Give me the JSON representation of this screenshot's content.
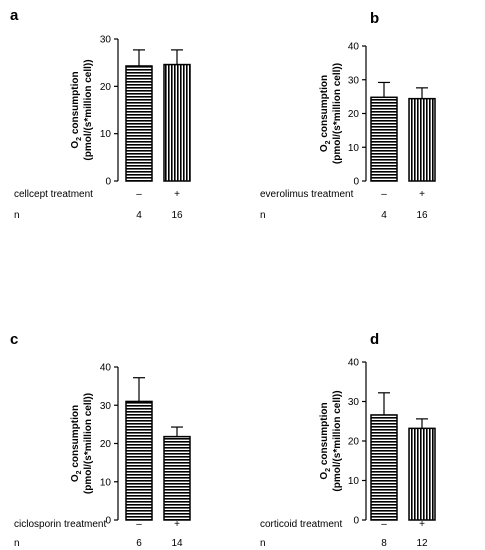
{
  "chart_data": [
    {
      "type": "bar",
      "panel": "a",
      "ylabel_line1_pre": "O",
      "ylabel_line1_sub": "2",
      "ylabel_line1_post": " consumption",
      "ylabel_line2": "(pmol/(s*million cell))",
      "ylim": [
        0,
        30
      ],
      "yticks": [
        "0",
        "10",
        "20",
        "30"
      ],
      "categories": [
        "–",
        "+"
      ],
      "values": [
        24.3,
        24.6
      ],
      "errors": [
        3.4,
        3.1
      ],
      "condition_label": "cellcept treatment",
      "n_label": "n",
      "n_values": [
        "4",
        "16"
      ],
      "bar_patterns": [
        "horizontal",
        "vertical"
      ]
    },
    {
      "type": "bar",
      "panel": "b",
      "ylabel_line1_pre": "O",
      "ylabel_line1_sub": "2",
      "ylabel_line1_post": " consumption",
      "ylabel_line2": "(pmol/(s*million cell))",
      "ylim": [
        0,
        40
      ],
      "yticks": [
        "0",
        "10",
        "20",
        "30",
        "40"
      ],
      "categories": [
        "–",
        "+"
      ],
      "values": [
        24.8,
        24.4
      ],
      "errors": [
        4.4,
        3.2
      ],
      "condition_label": "everolimus treatment",
      "n_label": "n",
      "n_values": [
        "4",
        "16"
      ],
      "bar_patterns": [
        "horizontal",
        "vertical"
      ]
    },
    {
      "type": "bar",
      "panel": "c",
      "ylabel_line1_pre": "O",
      "ylabel_line1_sub": "2",
      "ylabel_line1_post": " consumption",
      "ylabel_line2": "(pmol/(s*million cell))",
      "ylim": [
        0,
        40
      ],
      "yticks": [
        "0",
        "10",
        "20",
        "30",
        "40"
      ],
      "categories": [
        "–",
        "+"
      ],
      "values": [
        31.0,
        21.8
      ],
      "errors": [
        6.2,
        2.5
      ],
      "condition_label": "ciclosporin treatment",
      "n_label": "n",
      "n_values": [
        "6",
        "14"
      ],
      "bar_patterns": [
        "horizontal",
        "horizontal"
      ]
    },
    {
      "type": "bar",
      "panel": "d",
      "ylabel_line1_pre": "O",
      "ylabel_line1_sub": "2",
      "ylabel_line1_post": " consumption",
      "ylabel_line2": "(pmol/(s*million cell))",
      "ylim": [
        0,
        40
      ],
      "yticks": [
        "0",
        "10",
        "20",
        "30",
        "40"
      ],
      "categories": [
        "–",
        "+"
      ],
      "values": [
        26.6,
        23.2
      ],
      "errors": [
        5.6,
        2.4
      ],
      "condition_label": "corticoid treatment",
      "n_label": "n",
      "n_values": [
        "8",
        "12"
      ],
      "bar_patterns": [
        "horizontal",
        "vertical"
      ]
    }
  ]
}
